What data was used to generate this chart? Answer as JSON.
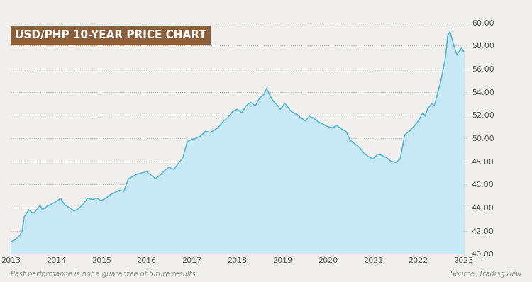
{
  "title": "USD/PHP 10-YEAR PRICE CHART",
  "title_bg_color": "#8B5E3C",
  "title_text_color": "#FFFFFF",
  "bg_color": "#F0EFED",
  "plot_bg_color": "#F0EFED",
  "line_color": "#5BB8D4",
  "fill_color_top": "#C8E8F5",
  "fill_color_bottom": "#E8F5FC",
  "grid_color": "#C8C0B8",
  "ylabel_color": "#555555",
  "xlabel_color": "#555555",
  "ylim": [
    40.0,
    60.0
  ],
  "yticks": [
    40.0,
    42.0,
    44.0,
    46.0,
    48.0,
    50.0,
    52.0,
    54.0,
    56.0,
    58.0,
    60.0
  ],
  "xtick_years": [
    "2013",
    "2014",
    "2015",
    "2016",
    "2017",
    "2018",
    "2019",
    "2020",
    "2021",
    "2022",
    "2023"
  ],
  "footnote_left": "Past performance is not a guarantee of future results",
  "footnote_right": "Source: TradingView",
  "data_points": [
    [
      2013.0,
      41.05
    ],
    [
      2013.1,
      41.2
    ],
    [
      2013.2,
      41.6
    ],
    [
      2013.25,
      41.9
    ],
    [
      2013.3,
      43.2
    ],
    [
      2013.4,
      43.8
    ],
    [
      2013.5,
      43.5
    ],
    [
      2013.6,
      43.9
    ],
    [
      2013.65,
      44.2
    ],
    [
      2013.7,
      43.8
    ],
    [
      2013.8,
      44.1
    ],
    [
      2013.9,
      44.3
    ],
    [
      2014.0,
      44.5
    ],
    [
      2014.1,
      44.8
    ],
    [
      2014.2,
      44.2
    ],
    [
      2014.3,
      44.0
    ],
    [
      2014.4,
      43.7
    ],
    [
      2014.5,
      43.9
    ],
    [
      2014.6,
      44.3
    ],
    [
      2014.7,
      44.8
    ],
    [
      2014.8,
      44.7
    ],
    [
      2014.9,
      44.8
    ],
    [
      2015.0,
      44.6
    ],
    [
      2015.1,
      44.8
    ],
    [
      2015.2,
      45.1
    ],
    [
      2015.3,
      45.3
    ],
    [
      2015.4,
      45.5
    ],
    [
      2015.5,
      45.4
    ],
    [
      2015.6,
      46.5
    ],
    [
      2015.7,
      46.7
    ],
    [
      2015.8,
      46.9
    ],
    [
      2015.9,
      47.0
    ],
    [
      2016.0,
      47.1
    ],
    [
      2016.1,
      46.8
    ],
    [
      2016.2,
      46.5
    ],
    [
      2016.3,
      46.8
    ],
    [
      2016.4,
      47.2
    ],
    [
      2016.5,
      47.5
    ],
    [
      2016.6,
      47.3
    ],
    [
      2016.7,
      47.8
    ],
    [
      2016.8,
      48.3
    ],
    [
      2016.9,
      49.7
    ],
    [
      2017.0,
      49.9
    ],
    [
      2017.1,
      50.0
    ],
    [
      2017.2,
      50.2
    ],
    [
      2017.3,
      50.6
    ],
    [
      2017.4,
      50.5
    ],
    [
      2017.5,
      50.7
    ],
    [
      2017.6,
      51.0
    ],
    [
      2017.7,
      51.5
    ],
    [
      2017.8,
      51.8
    ],
    [
      2017.9,
      52.3
    ],
    [
      2018.0,
      52.5
    ],
    [
      2018.1,
      52.2
    ],
    [
      2018.2,
      52.8
    ],
    [
      2018.3,
      53.1
    ],
    [
      2018.4,
      52.8
    ],
    [
      2018.5,
      53.5
    ],
    [
      2018.6,
      53.8
    ],
    [
      2018.65,
      54.3
    ],
    [
      2018.7,
      53.9
    ],
    [
      2018.75,
      53.5
    ],
    [
      2018.8,
      53.2
    ],
    [
      2018.85,
      53.0
    ],
    [
      2018.9,
      52.8
    ],
    [
      2018.95,
      52.5
    ],
    [
      2019.0,
      52.7
    ],
    [
      2019.05,
      53.0
    ],
    [
      2019.1,
      52.8
    ],
    [
      2019.15,
      52.5
    ],
    [
      2019.2,
      52.3
    ],
    [
      2019.3,
      52.1
    ],
    [
      2019.4,
      51.8
    ],
    [
      2019.5,
      51.5
    ],
    [
      2019.6,
      51.9
    ],
    [
      2019.7,
      51.7
    ],
    [
      2019.8,
      51.4
    ],
    [
      2019.9,
      51.2
    ],
    [
      2020.0,
      51.0
    ],
    [
      2020.1,
      50.9
    ],
    [
      2020.2,
      51.1
    ],
    [
      2020.3,
      50.8
    ],
    [
      2020.4,
      50.6
    ],
    [
      2020.5,
      49.8
    ],
    [
      2020.6,
      49.5
    ],
    [
      2020.7,
      49.2
    ],
    [
      2020.8,
      48.7
    ],
    [
      2020.9,
      48.4
    ],
    [
      2021.0,
      48.2
    ],
    [
      2021.1,
      48.6
    ],
    [
      2021.2,
      48.5
    ],
    [
      2021.3,
      48.3
    ],
    [
      2021.4,
      48.0
    ],
    [
      2021.5,
      47.9
    ],
    [
      2021.6,
      48.2
    ],
    [
      2021.7,
      50.3
    ],
    [
      2021.8,
      50.6
    ],
    [
      2021.9,
      51.0
    ],
    [
      2022.0,
      51.5
    ],
    [
      2022.1,
      52.2
    ],
    [
      2022.15,
      51.9
    ],
    [
      2022.2,
      52.5
    ],
    [
      2022.3,
      53.0
    ],
    [
      2022.35,
      52.8
    ],
    [
      2022.4,
      53.5
    ],
    [
      2022.5,
      55.0
    ],
    [
      2022.55,
      56.0
    ],
    [
      2022.6,
      57.0
    ],
    [
      2022.65,
      58.9
    ],
    [
      2022.7,
      59.2
    ],
    [
      2022.75,
      58.5
    ],
    [
      2022.8,
      57.8
    ],
    [
      2022.85,
      57.2
    ],
    [
      2022.9,
      57.5
    ],
    [
      2022.95,
      57.8
    ],
    [
      2023.0,
      57.5
    ]
  ]
}
